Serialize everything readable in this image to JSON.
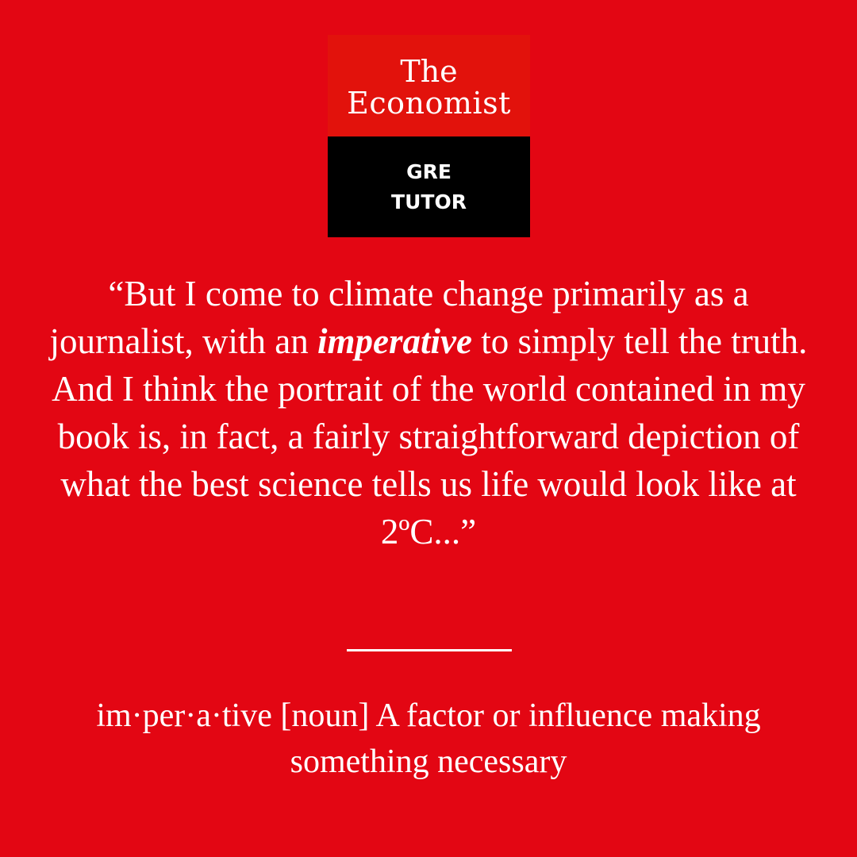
{
  "logo": {
    "line1": "The",
    "line2": "Economist",
    "sub1": "GRE",
    "sub2": "TUTOR"
  },
  "quote": {
    "before": "“But I come to climate change primarily as a journalist, with an ",
    "emphasis": "imperative",
    "after": " to simply tell the truth. And I think the portrait of the world contained in my book is, in fact, a fairly straightforward depiction of what the best science tells us life would look like at 2ºC...”"
  },
  "definition": {
    "text": "im·per·a·tive [noun] A factor or influence making something necessary"
  },
  "colors": {
    "background": "#e30613",
    "logo_top": "#e2120c",
    "logo_bottom": "#000000",
    "text": "#ffffff"
  }
}
